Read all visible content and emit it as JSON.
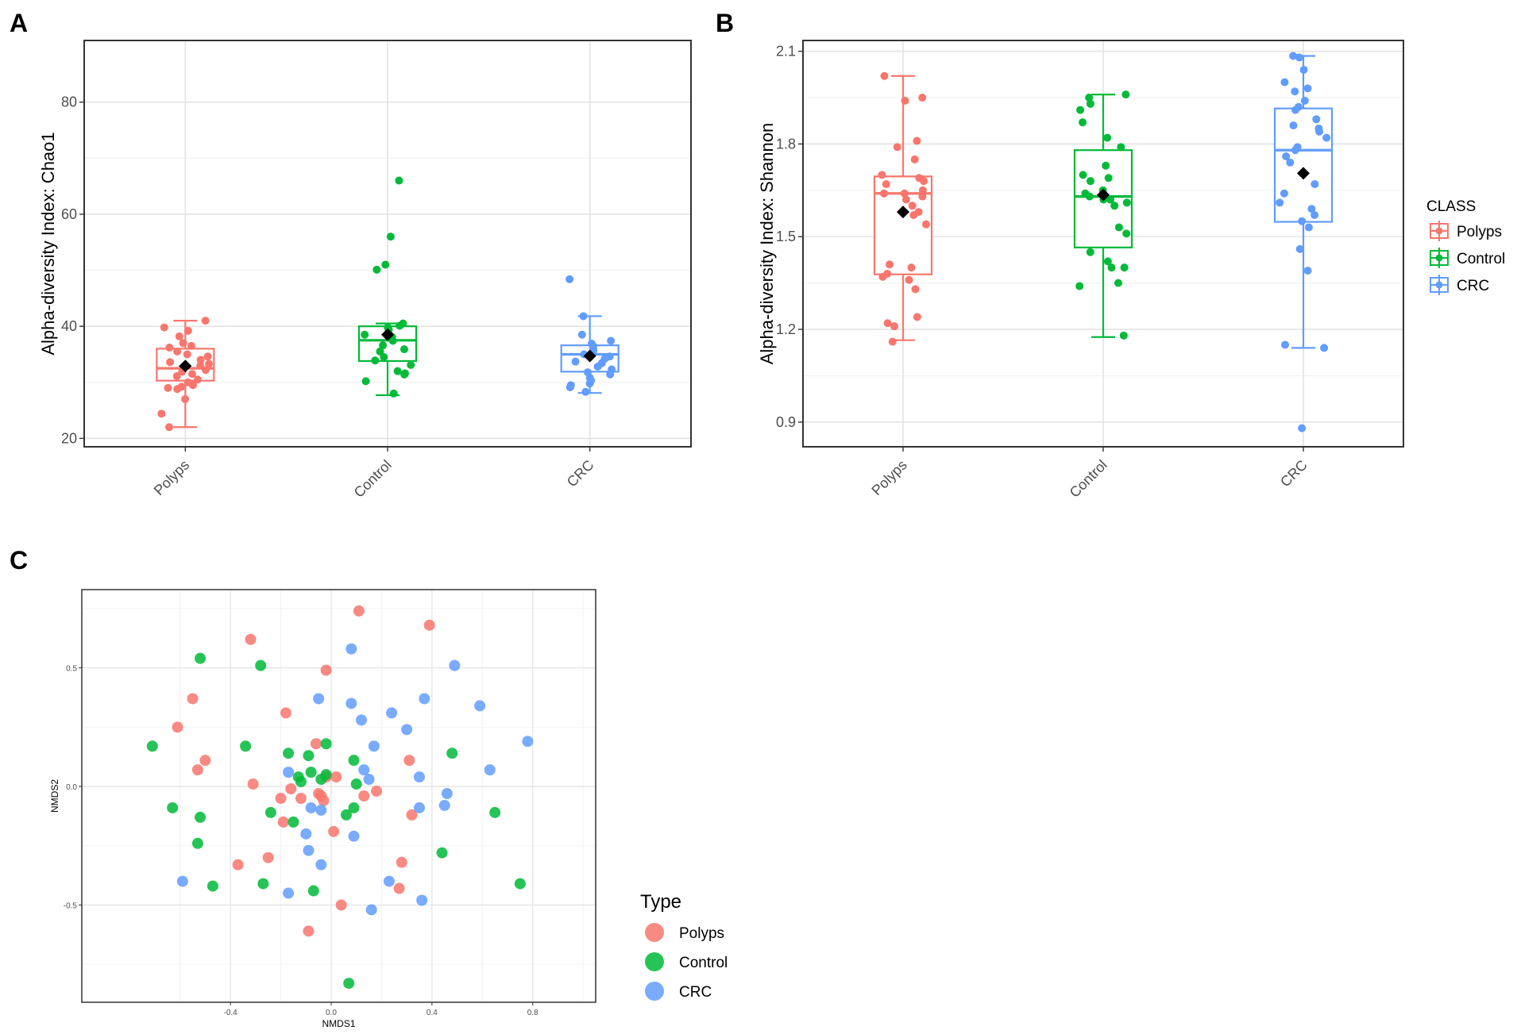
{
  "panels": {
    "a": "A",
    "b": "B",
    "c": "C"
  },
  "colors": {
    "Polyps": "#F8766D",
    "Control": "#00BA38",
    "CRC": "#619CFF",
    "mean_marker": "#000000"
  },
  "chart_data": [
    {
      "id": "A",
      "type": "box",
      "title": "",
      "xlabel": "",
      "ylabel": "Alpha-diversity Index: Chao1",
      "categories": [
        "Polyps",
        "Control",
        "CRC"
      ],
      "ylim": [
        18.5,
        91
      ],
      "yticks": [
        20,
        40,
        60,
        80
      ],
      "grid": true,
      "boxes": [
        {
          "name": "Polyps",
          "min": 22.0,
          "q1": 30.3,
          "median": 32.5,
          "q3": 36.0,
          "max": 41.0,
          "mean": 32.9,
          "points": [
            41.0,
            39.8,
            39.2,
            38.2,
            37.0,
            36.5,
            36.2,
            35.5,
            35.0,
            34.6,
            34.0,
            33.6,
            33.3,
            33.0,
            32.6,
            32.2,
            31.9,
            31.5,
            31.1,
            30.5,
            30.0,
            29.5,
            29.2,
            29.0,
            28.8,
            27.0,
            24.4,
            22.0
          ]
        },
        {
          "name": "Control",
          "min": 27.7,
          "q1": 33.8,
          "median": 37.5,
          "q3": 40.0,
          "max": 40.5,
          "mean": 38.5,
          "points": [
            66.0,
            56.0,
            51.0,
            50.1,
            40.5,
            40.1,
            39.8,
            39.4,
            38.9,
            38.5,
            38.1,
            37.4,
            36.6,
            35.9,
            35.5,
            34.5,
            33.9,
            33.1,
            32.0,
            31.6,
            31.4,
            30.2,
            28.0
          ]
        },
        {
          "name": "CRC",
          "min": 28.1,
          "q1": 31.9,
          "median": 35.0,
          "q3": 36.6,
          "max": 41.8,
          "mean": 34.7,
          "points": [
            48.4,
            41.8,
            38.5,
            37.4,
            36.9,
            36.5,
            36.2,
            35.8,
            35.4,
            35.0,
            34.6,
            34.2,
            33.7,
            33.4,
            32.8,
            32.3,
            31.8,
            31.4,
            30.8,
            30.3,
            29.8,
            29.5,
            29.1,
            28.3
          ]
        }
      ]
    },
    {
      "id": "B",
      "type": "box",
      "title": "",
      "xlabel": "",
      "ylabel": "Alpha-diversity Index: Shannon",
      "categories": [
        "Polyps",
        "Control",
        "CRC"
      ],
      "ylim": [
        0.82,
        2.135
      ],
      "yticks": [
        0.9,
        1.2,
        1.5,
        1.8,
        2.1
      ],
      "grid": true,
      "legend": {
        "title": "CLASS",
        "entries": [
          "Polyps",
          "Control",
          "CRC"
        ],
        "placement": "right"
      },
      "boxes": [
        {
          "name": "Polyps",
          "min": 1.165,
          "q1": 1.378,
          "median": 1.64,
          "q3": 1.695,
          "max": 2.02,
          "mean": 1.58,
          "points": [
            2.02,
            1.95,
            1.94,
            1.81,
            1.79,
            1.75,
            1.7,
            1.69,
            1.68,
            1.67,
            1.65,
            1.64,
            1.64,
            1.63,
            1.62,
            1.6,
            1.58,
            1.57,
            1.54,
            1.41,
            1.4,
            1.38,
            1.37,
            1.36,
            1.33,
            1.24,
            1.22,
            1.21,
            1.16
          ]
        },
        {
          "name": "Control",
          "min": 1.175,
          "q1": 1.465,
          "median": 1.63,
          "q3": 1.78,
          "max": 1.96,
          "mean": 1.635,
          "points": [
            1.96,
            1.95,
            1.93,
            1.91,
            1.87,
            1.82,
            1.79,
            1.73,
            1.7,
            1.69,
            1.68,
            1.65,
            1.64,
            1.63,
            1.62,
            1.62,
            1.61,
            1.6,
            1.53,
            1.51,
            1.45,
            1.42,
            1.4,
            1.4,
            1.35,
            1.34,
            1.18
          ]
        },
        {
          "name": "CRC",
          "min": 1.14,
          "q1": 1.548,
          "median": 1.78,
          "q3": 1.915,
          "max": 2.085,
          "mean": 1.705,
          "points": [
            2.085,
            2.08,
            2.04,
            2.0,
            1.98,
            1.97,
            1.94,
            1.92,
            1.91,
            1.88,
            1.86,
            1.85,
            1.84,
            1.82,
            1.79,
            1.78,
            1.76,
            1.74,
            1.67,
            1.64,
            1.61,
            1.59,
            1.57,
            1.55,
            1.53,
            1.46,
            1.39,
            1.15,
            1.14,
            0.88
          ]
        }
      ]
    },
    {
      "id": "C",
      "type": "scatter",
      "title": "",
      "xlabel": "NMDS1",
      "ylabel": "NMDS2",
      "xlim": [
        -0.99,
        1.05
      ],
      "ylim": [
        -0.91,
        0.83
      ],
      "xticks": [
        -0.4,
        0.0,
        0.4,
        0.8
      ],
      "yticks": [
        -0.5,
        0.0,
        0.5
      ],
      "tick_labels_x": [
        "-0.4",
        "0.0",
        "0.4",
        "0.8"
      ],
      "tick_labels_y": [
        "-0.5",
        "0.0",
        "0.5"
      ],
      "grid": true,
      "legend": {
        "title": "Type",
        "entries": [
          "Polyps",
          "Control",
          "CRC"
        ],
        "placement": "bottom-right"
      },
      "series": [
        {
          "name": "Polyps",
          "points": [
            [
              0.11,
              0.74
            ],
            [
              0.39,
              0.68
            ],
            [
              -0.32,
              0.62
            ],
            [
              -0.02,
              0.49
            ],
            [
              -0.55,
              0.37
            ],
            [
              -0.61,
              0.25
            ],
            [
              -0.18,
              0.31
            ],
            [
              -0.5,
              0.11
            ],
            [
              -0.53,
              0.07
            ],
            [
              -0.06,
              0.18
            ],
            [
              0.31,
              0.11
            ],
            [
              -0.31,
              0.01
            ],
            [
              -0.02,
              0.04
            ],
            [
              0.02,
              0.04
            ],
            [
              -0.16,
              -0.01
            ],
            [
              0.13,
              -0.04
            ],
            [
              0.18,
              -0.02
            ],
            [
              -0.2,
              -0.05
            ],
            [
              -0.12,
              -0.05
            ],
            [
              -0.05,
              -0.03
            ],
            [
              -0.04,
              -0.04
            ],
            [
              -0.03,
              -0.06
            ],
            [
              0.32,
              -0.12
            ],
            [
              -0.19,
              -0.15
            ],
            [
              0.01,
              -0.19
            ],
            [
              -0.37,
              -0.33
            ],
            [
              -0.25,
              -0.3
            ],
            [
              0.28,
              -0.32
            ],
            [
              0.27,
              -0.43
            ],
            [
              0.04,
              -0.5
            ],
            [
              -0.09,
              -0.61
            ]
          ]
        },
        {
          "name": "Control",
          "points": [
            [
              -0.52,
              0.54
            ],
            [
              -0.28,
              0.51
            ],
            [
              -0.71,
              0.17
            ],
            [
              -0.34,
              0.17
            ],
            [
              -0.17,
              0.14
            ],
            [
              -0.09,
              0.13
            ],
            [
              -0.02,
              0.18
            ],
            [
              0.09,
              0.11
            ],
            [
              0.48,
              0.14
            ],
            [
              -0.13,
              0.04
            ],
            [
              -0.12,
              0.02
            ],
            [
              -0.08,
              0.06
            ],
            [
              -0.04,
              0.03
            ],
            [
              -0.02,
              0.05
            ],
            [
              0.1,
              0.01
            ],
            [
              -0.63,
              -0.09
            ],
            [
              -0.52,
              -0.13
            ],
            [
              -0.24,
              -0.11
            ],
            [
              -0.15,
              -0.15
            ],
            [
              0.06,
              -0.12
            ],
            [
              0.09,
              -0.09
            ],
            [
              0.65,
              -0.11
            ],
            [
              -0.53,
              -0.24
            ],
            [
              0.44,
              -0.28
            ],
            [
              -0.47,
              -0.42
            ],
            [
              -0.27,
              -0.41
            ],
            [
              -0.07,
              -0.44
            ],
            [
              0.75,
              -0.41
            ],
            [
              0.07,
              -0.83
            ]
          ]
        },
        {
          "name": "CRC",
          "points": [
            [
              0.08,
              0.58
            ],
            [
              0.49,
              0.51
            ],
            [
              -0.05,
              0.37
            ],
            [
              0.08,
              0.35
            ],
            [
              0.37,
              0.37
            ],
            [
              0.12,
              0.28
            ],
            [
              0.24,
              0.31
            ],
            [
              0.3,
              0.24
            ],
            [
              0.59,
              0.34
            ],
            [
              0.17,
              0.17
            ],
            [
              0.78,
              0.19
            ],
            [
              0.13,
              0.07
            ],
            [
              -0.17,
              0.06
            ],
            [
              0.15,
              0.03
            ],
            [
              0.35,
              0.04
            ],
            [
              0.63,
              0.07
            ],
            [
              0.46,
              -0.03
            ],
            [
              -0.08,
              -0.09
            ],
            [
              -0.04,
              -0.1
            ],
            [
              0.35,
              -0.09
            ],
            [
              0.45,
              -0.08
            ],
            [
              -0.1,
              -0.2
            ],
            [
              0.09,
              -0.21
            ],
            [
              -0.09,
              -0.27
            ],
            [
              -0.04,
              -0.33
            ],
            [
              -0.59,
              -0.4
            ],
            [
              -0.17,
              -0.45
            ],
            [
              0.23,
              -0.4
            ],
            [
              0.36,
              -0.48
            ],
            [
              0.16,
              -0.52
            ]
          ]
        }
      ]
    }
  ]
}
